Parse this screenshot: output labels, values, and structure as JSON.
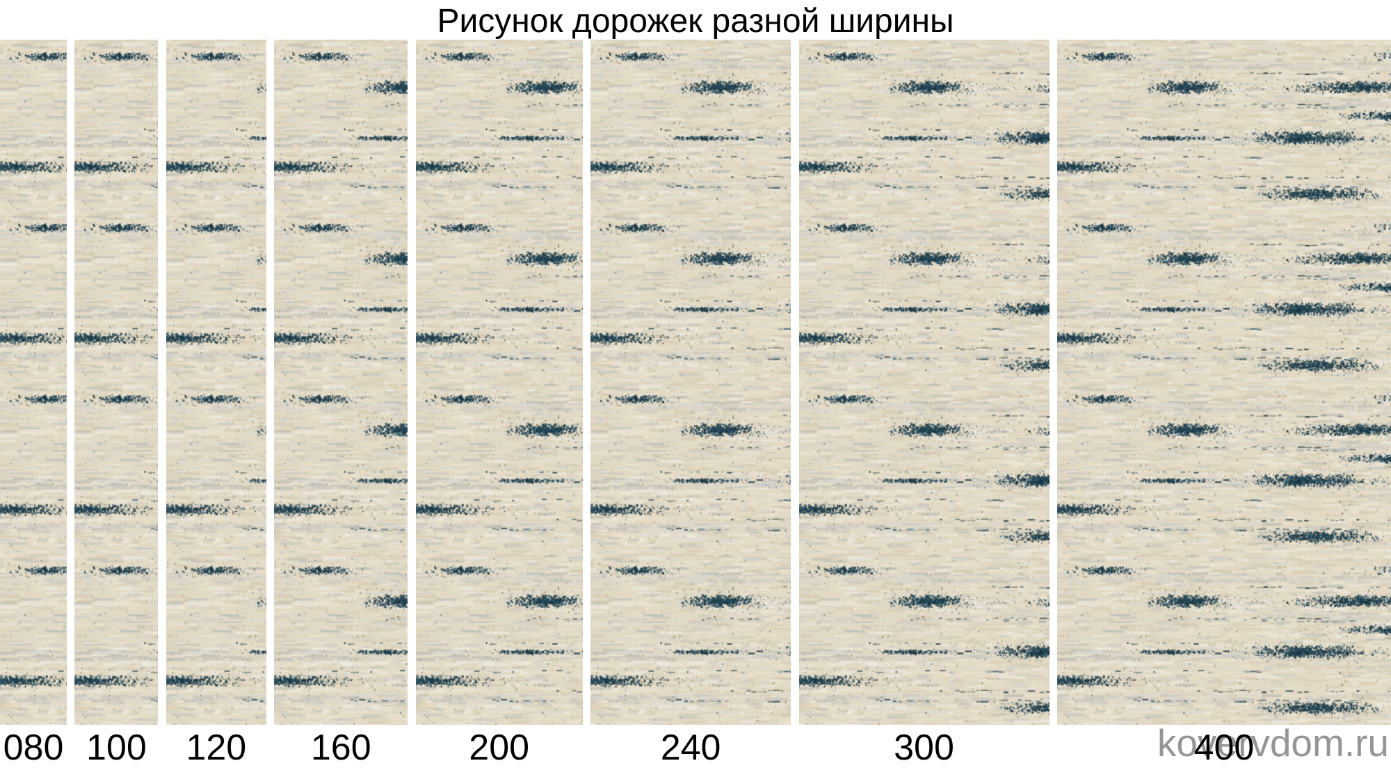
{
  "title": "Рисунок дорожек разной ширины",
  "watermark": "kovervdom.ru",
  "strips": [
    {
      "label": "080",
      "value_cm": 80
    },
    {
      "label": "100",
      "value_cm": 100
    },
    {
      "label": "120",
      "value_cm": 120
    },
    {
      "label": "160",
      "value_cm": 160
    },
    {
      "label": "200",
      "value_cm": 200
    },
    {
      "label": "240",
      "value_cm": 240
    },
    {
      "label": "300",
      "value_cm": 300
    },
    {
      "label": "400",
      "value_cm": 400
    }
  ],
  "carpet_colors": {
    "base": "#e3dac5",
    "beige_light": "#ece4d0",
    "beige_dark": "#d5c9b1",
    "white": "#f0ede5",
    "gray": "#c7c9c6",
    "gray_light": "#d8d8d4",
    "gray_dark": "#b7bab7",
    "teal": "#21424f",
    "teal_light": "#31576a",
    "teal_dark": "#142d38",
    "speck_brown": "#a39677",
    "speck_dark": "#55574e"
  }
}
